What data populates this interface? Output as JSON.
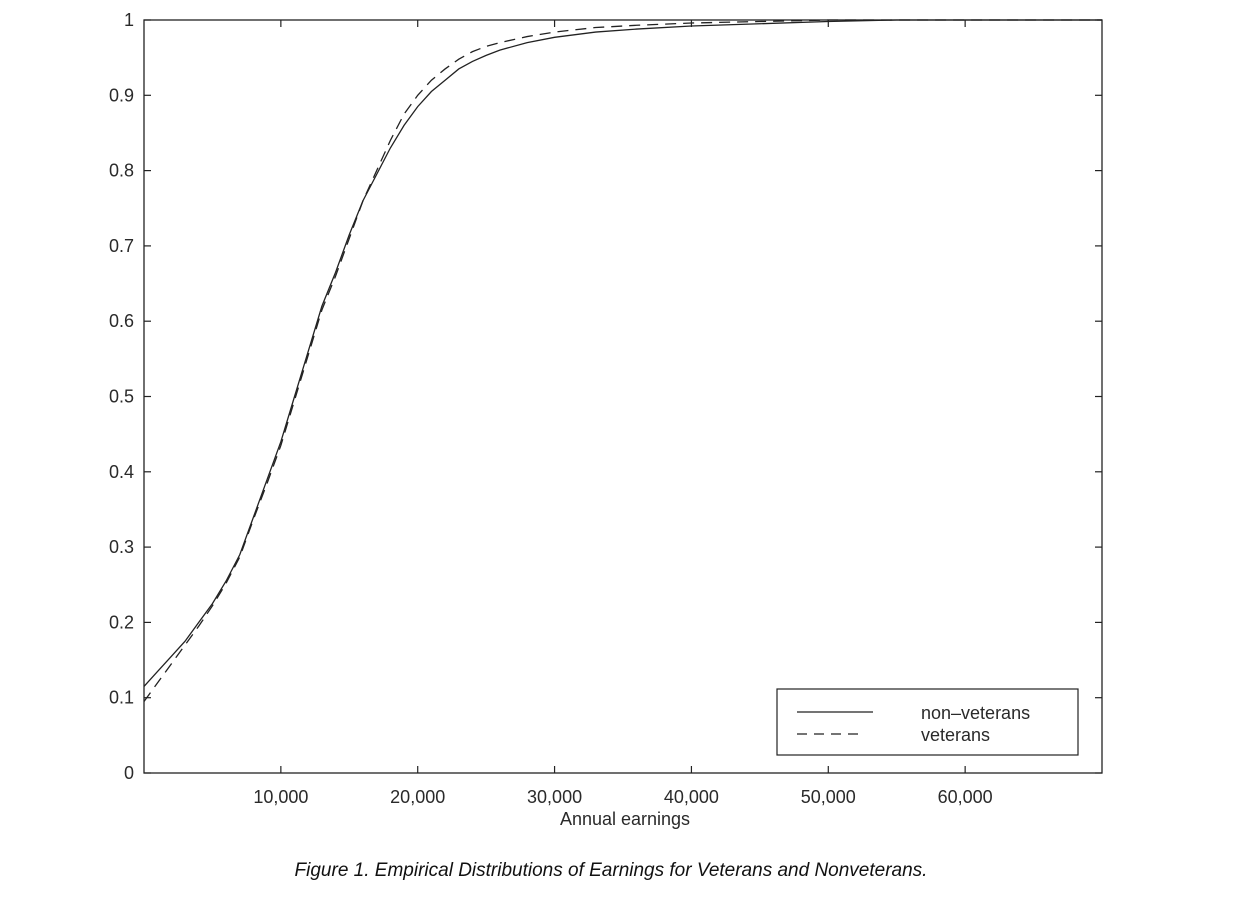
{
  "caption": "Figure 1.   Empirical Distributions of Earnings for Veterans and Nonveterans.",
  "chart_data": {
    "type": "line",
    "title": "",
    "xlabel": "Annual earnings",
    "ylabel": "",
    "xlim": [
      0,
      70000
    ],
    "ylim": [
      0,
      1
    ],
    "x_ticks": [
      10000,
      20000,
      30000,
      40000,
      50000,
      60000
    ],
    "x_tick_labels": [
      "10,000",
      "20,000",
      "30,000",
      "40,000",
      "50,000",
      "60,000"
    ],
    "y_ticks": [
      0,
      0.1,
      0.2,
      0.3,
      0.4,
      0.5,
      0.6,
      0.7,
      0.8,
      0.9,
      1
    ],
    "y_tick_labels": [
      "0",
      "0.1",
      "0.2",
      "0.3",
      "0.4",
      "0.5",
      "0.6",
      "0.7",
      "0.8",
      "0.9",
      "1"
    ],
    "grid": false,
    "legend_position": "bottom-right",
    "series": [
      {
        "name": "non–veterans",
        "line_style": "solid",
        "color": "#222222",
        "x": [
          0,
          1000,
          2000,
          3000,
          4000,
          5000,
          6000,
          7000,
          8000,
          9000,
          10000,
          11000,
          12000,
          13000,
          14000,
          15000,
          16000,
          17000,
          18000,
          19000,
          20000,
          21000,
          22000,
          23000,
          24000,
          25000,
          26000,
          28000,
          30000,
          33000,
          36000,
          40000,
          45000,
          50000,
          55000,
          60000,
          65000,
          70000
        ],
        "y": [
          0.115,
          0.135,
          0.155,
          0.175,
          0.2,
          0.225,
          0.255,
          0.29,
          0.34,
          0.39,
          0.44,
          0.5,
          0.56,
          0.62,
          0.665,
          0.715,
          0.76,
          0.795,
          0.83,
          0.86,
          0.885,
          0.905,
          0.92,
          0.935,
          0.945,
          0.953,
          0.96,
          0.97,
          0.977,
          0.984,
          0.988,
          0.992,
          0.995,
          0.998,
          1.0,
          1.0,
          1.0,
          1.0
        ]
      },
      {
        "name": "veterans",
        "line_style": "dashed",
        "color": "#222222",
        "x": [
          0,
          1000,
          2000,
          3000,
          4000,
          5000,
          6000,
          7000,
          8000,
          9000,
          10000,
          11000,
          12000,
          13000,
          14000,
          15000,
          16000,
          17000,
          18000,
          19000,
          20000,
          21000,
          22000,
          23000,
          24000,
          25000,
          26000,
          28000,
          30000,
          33000,
          36000,
          40000,
          45000,
          50000,
          55000,
          60000,
          65000,
          70000
        ],
        "y": [
          0.095,
          0.12,
          0.145,
          0.17,
          0.195,
          0.222,
          0.252,
          0.287,
          0.337,
          0.385,
          0.435,
          0.495,
          0.555,
          0.615,
          0.66,
          0.71,
          0.76,
          0.8,
          0.84,
          0.875,
          0.9,
          0.92,
          0.935,
          0.948,
          0.958,
          0.965,
          0.97,
          0.978,
          0.984,
          0.99,
          0.993,
          0.996,
          0.998,
          1.0,
          1.0,
          1.0,
          1.0,
          1.0
        ]
      }
    ]
  }
}
